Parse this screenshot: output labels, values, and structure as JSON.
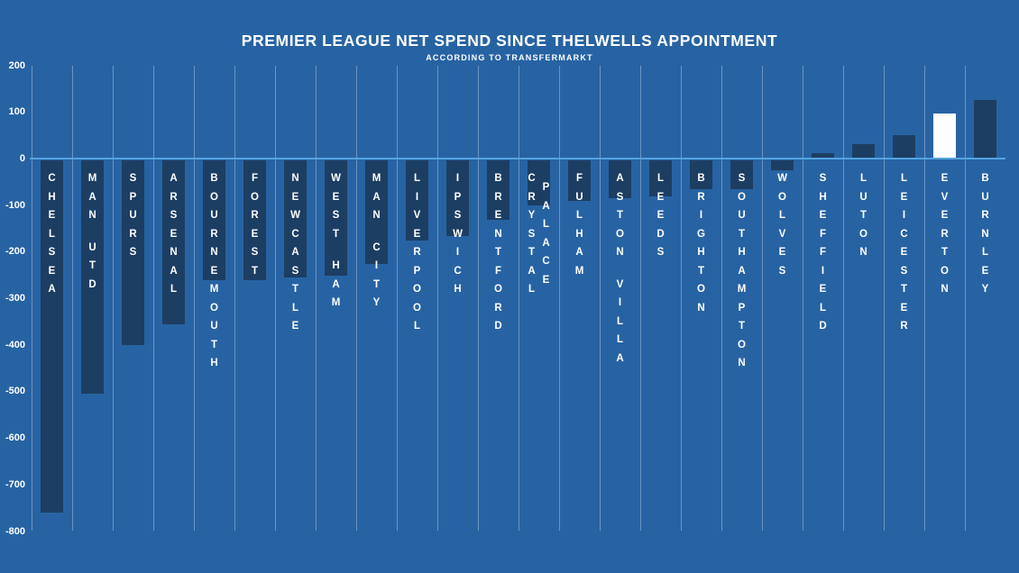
{
  "header": {
    "title": "PREMIER LEAGUE NET SPEND SINCE THELWELLS APPOINTMENT",
    "subtitle": "ACCORDING TO TRANSFERMARKT"
  },
  "colors": {
    "background": "#2763a3",
    "bar": "#1d3e63",
    "highlight_bar": "#ffffff",
    "zero_line": "#54a4e0",
    "gridline": "rgba(255,255,255,0.32)",
    "text": "#ffffff"
  },
  "chart_data": {
    "type": "bar",
    "title": "PREMIER LEAGUE NET SPEND SINCE THELWELLS APPOINTMENT",
    "subtitle": "ACCORDING TO TRANSFERMARKT",
    "xlabel": "",
    "ylabel": "",
    "categories": [
      "CHELSEA",
      "MAN UTD",
      "SPURS",
      "ARSENAL",
      "BOURNEMOUTH",
      "FOREST",
      "NEWCASTLE",
      "WEST HAM",
      "MAN CITY",
      "LIVERPOOL",
      "IPSWICH",
      "BRENTFORD",
      "CRYSTAL PALACE",
      "FULHAM",
      "ASTON VILLA",
      "LEEDS",
      "BRIGHTON",
      "SOUTHAMPTON",
      "WOLVES",
      "SHEFFIELD",
      "LUTON",
      "LEICESTER",
      "EVERTON",
      "BURNLEY"
    ],
    "values": [
      -760,
      -505,
      -400,
      -355,
      -260,
      -260,
      -255,
      -250,
      -225,
      -175,
      -165,
      -130,
      -100,
      -90,
      -85,
      -80,
      -65,
      -65,
      -25,
      10,
      30,
      50,
      95,
      125
    ],
    "highlighted_category": "EVERTON",
    "two_column_label": "CRYSTAL PALACE",
    "ylim": [
      -800,
      200
    ],
    "yticks": [
      200,
      100,
      0,
      -100,
      -200,
      -300,
      -400,
      -500,
      -600,
      -700,
      -800
    ],
    "grid": "vertical",
    "legend": "none",
    "bar_label_position": "inside-top-vertical"
  }
}
